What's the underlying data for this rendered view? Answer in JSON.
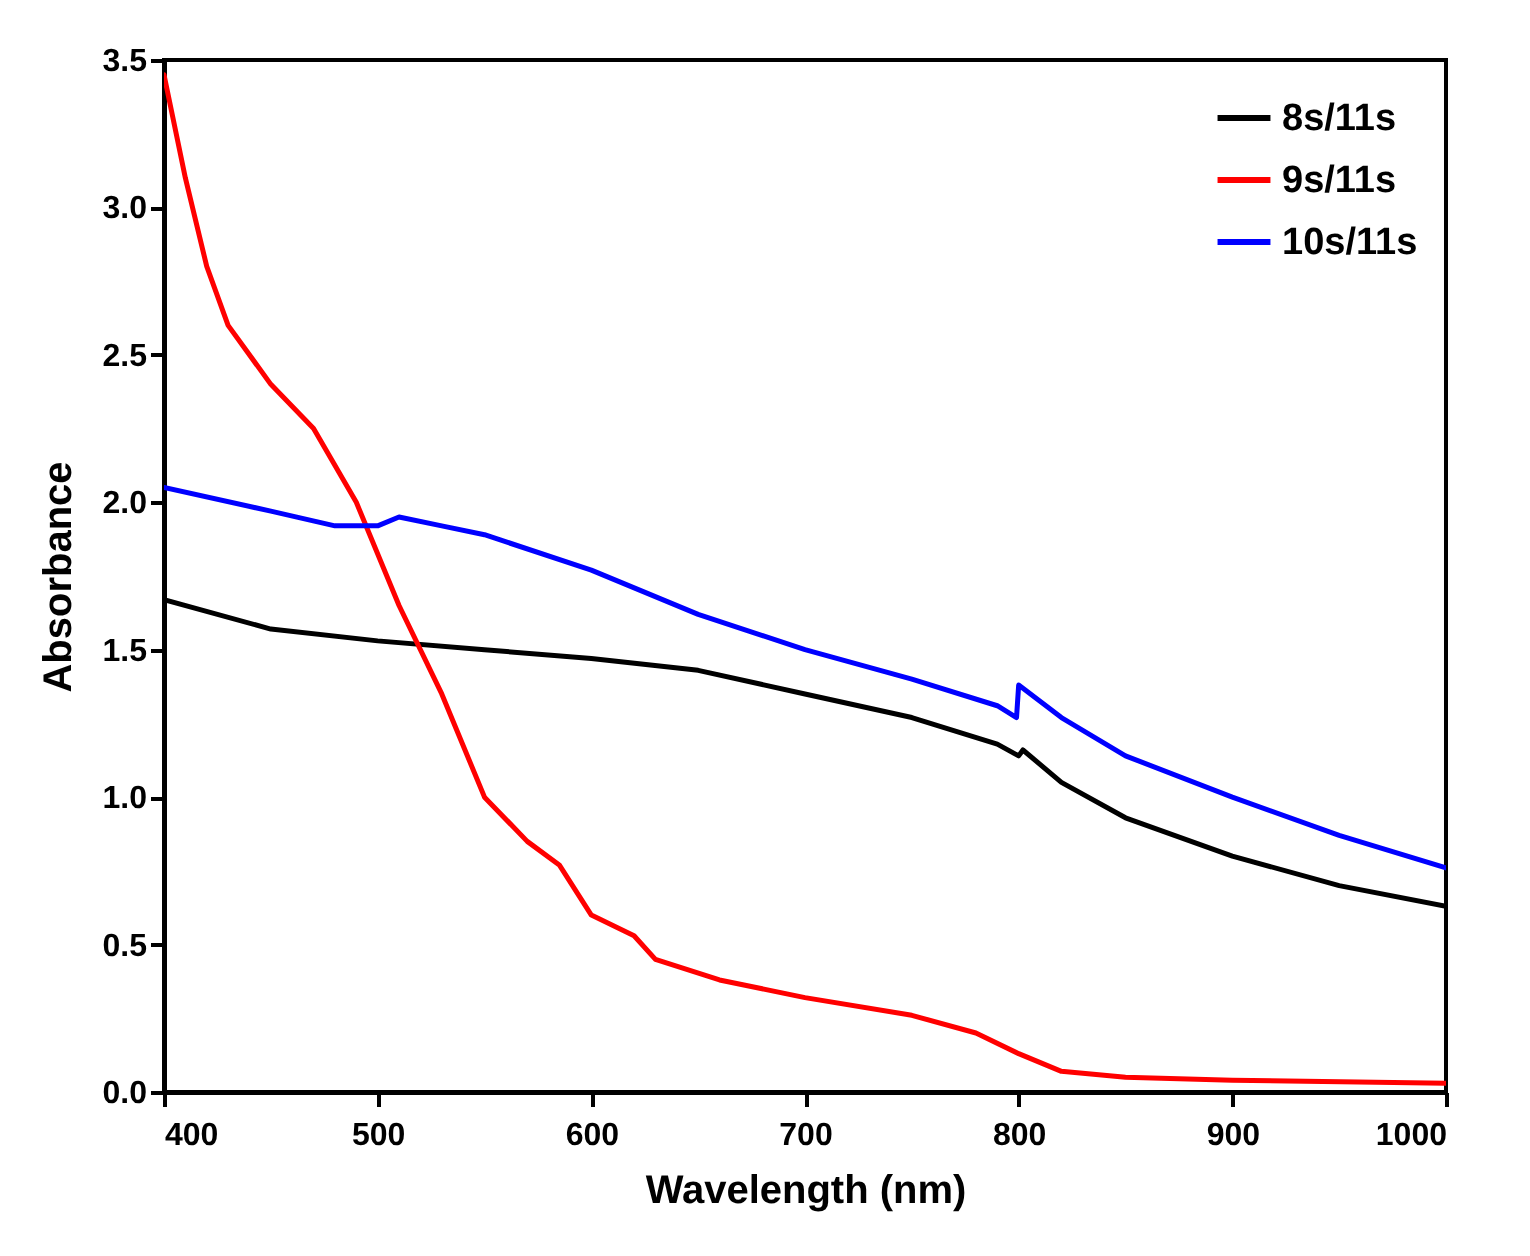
{
  "chart_data": {
    "type": "line",
    "xlabel": "Wavelength (nm)",
    "ylabel": "Absorbance",
    "xlim": [
      400,
      1000
    ],
    "ylim": [
      0,
      3.5
    ],
    "xticks": [
      400,
      500,
      600,
      700,
      800,
      900,
      1000
    ],
    "yticks": [
      {
        "value": 0,
        "label": "0.0"
      },
      0.5,
      {
        "value": 1,
        "label": "1.0"
      },
      1.5,
      {
        "value": 2,
        "label": "2.0"
      },
      2.5,
      {
        "value": 3,
        "label": "3.0"
      },
      3.5
    ],
    "grid": false,
    "legend": "top right",
    "line_style": "solid",
    "marker": "none",
    "series": [
      {
        "name": "8s/11s",
        "color": "#000000",
        "x": [
          400,
          450,
          500,
          550,
          600,
          650,
          700,
          750,
          790,
          800,
          802,
          820,
          850,
          900,
          950,
          1000
        ],
        "values": [
          1.67,
          1.57,
          1.53,
          1.5,
          1.47,
          1.43,
          1.35,
          1.27,
          1.18,
          1.14,
          1.16,
          1.05,
          0.93,
          0.8,
          0.7,
          0.63
        ]
      },
      {
        "name": "9s/11s",
        "color": "#ff0000",
        "x": [
          400,
          410,
          420,
          430,
          450,
          470,
          490,
          510,
          530,
          550,
          570,
          585,
          600,
          620,
          630,
          660,
          700,
          750,
          780,
          800,
          820,
          850,
          900,
          1000
        ],
        "values": [
          3.45,
          3.1,
          2.8,
          2.6,
          2.4,
          2.25,
          2.0,
          1.65,
          1.35,
          1.0,
          0.85,
          0.77,
          0.6,
          0.53,
          0.45,
          0.38,
          0.32,
          0.26,
          0.2,
          0.13,
          0.07,
          0.05,
          0.04,
          0.03
        ]
      },
      {
        "name": "10s/11s",
        "color": "#0000ff",
        "x": [
          400,
          450,
          480,
          500,
          510,
          530,
          550,
          600,
          650,
          700,
          750,
          790,
          799,
          800,
          820,
          850,
          900,
          950,
          1000
        ],
        "values": [
          2.05,
          1.97,
          1.92,
          1.92,
          1.95,
          1.92,
          1.89,
          1.77,
          1.62,
          1.5,
          1.4,
          1.31,
          1.27,
          1.38,
          1.27,
          1.14,
          1.0,
          0.87,
          0.76
        ]
      }
    ]
  }
}
